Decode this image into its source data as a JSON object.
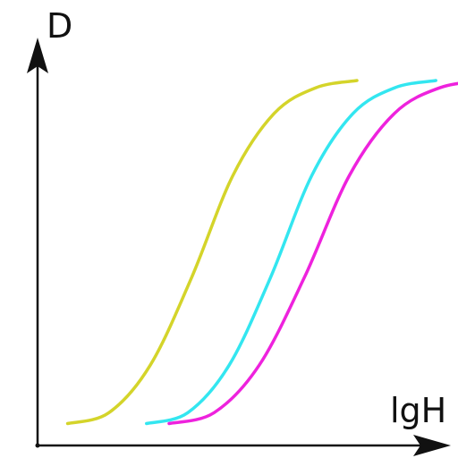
{
  "chart_data": {
    "type": "line",
    "title": "",
    "xlabel": "lgH",
    "ylabel": "D",
    "grid": false,
    "legend": "none",
    "series": [
      {
        "color": "#d4d42a",
        "x": [
          0.08,
          0.19,
          0.3,
          0.41,
          0.52,
          0.63,
          0.74,
          0.85
        ],
        "y": [
          0.06,
          0.09,
          0.22,
          0.46,
          0.74,
          0.91,
          0.98,
          1.0
        ]
      },
      {
        "color": "#33e6f0",
        "x": [
          0.29,
          0.4,
          0.51,
          0.62,
          0.73,
          0.84,
          0.95,
          1.06
        ],
        "y": [
          0.06,
          0.09,
          0.22,
          0.46,
          0.74,
          0.91,
          0.98,
          1.0
        ]
      },
      {
        "color": "#ee22dd",
        "x": [
          0.35,
          0.47,
          0.59,
          0.71,
          0.83,
          0.95,
          1.07,
          1.19
        ],
        "y": [
          0.06,
          0.09,
          0.22,
          0.46,
          0.74,
          0.91,
          0.98,
          1.0
        ]
      }
    ]
  }
}
